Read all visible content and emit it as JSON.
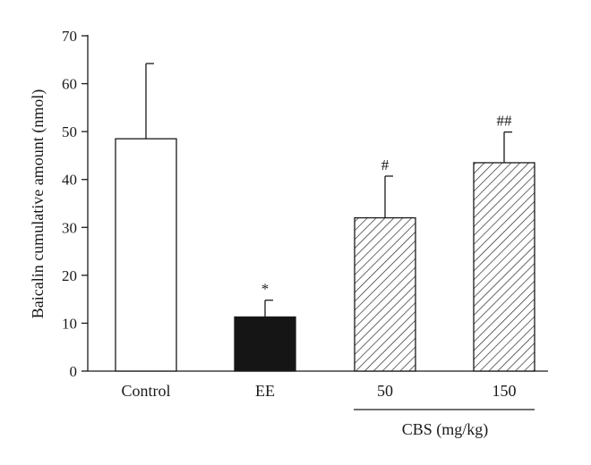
{
  "chart_data": {
    "type": "bar",
    "title": "",
    "xlabel": "",
    "ylabel": "Baicalin cumulative amount (nmol)",
    "ylim": [
      0,
      70
    ],
    "yticks": [
      0,
      10,
      20,
      30,
      40,
      50,
      60,
      70
    ],
    "grid": false,
    "categories": [
      "Control",
      "EE",
      "50",
      "150"
    ],
    "values": [
      48.5,
      11.3,
      32.0,
      43.5
    ],
    "error_upper": [
      15.7,
      3.5,
      8.7,
      6.4
    ],
    "significance": [
      "",
      "*",
      "#",
      "##"
    ],
    "fills": [
      "open",
      "solid",
      "hatched",
      "hatched"
    ],
    "group_label": {
      "text": "CBS (mg/kg)",
      "spans": [
        "50",
        "150"
      ]
    },
    "colors": {
      "open": "#ffffff",
      "solid": "#151515",
      "hatch": "#2a2a2a",
      "axis": "#1a1a1a"
    }
  }
}
